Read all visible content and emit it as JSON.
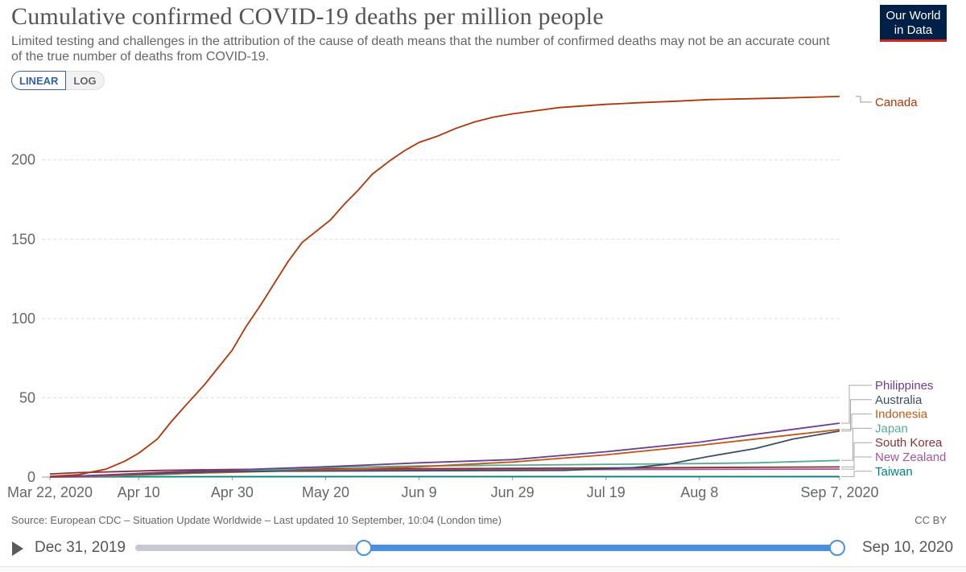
{
  "header": {
    "title": "Cumulative confirmed COVID-19 deaths per million people",
    "subtitle": "Limited testing and challenges in the attribution of the cause of death means that the number of confirmed deaths may not be an accurate count of the true number of deaths from COVID-19.",
    "logo_line1": "Our World",
    "logo_line2": "in Data"
  },
  "controls": {
    "linear_label": "LINEAR",
    "log_label": "LOG"
  },
  "footer": {
    "source": "Source: European CDC – Situation Update Worldwide – Last updated 10 September, 10:04 (London time)",
    "license": "CC BY"
  },
  "timeline": {
    "start_label": "Dec 31, 2019",
    "end_label": "Sep 10, 2020",
    "range_start_fraction": 0.326,
    "range_end_fraction": 1.0
  },
  "chart_data": {
    "type": "line",
    "title": "Cumulative confirmed COVID-19 deaths per million people",
    "xlabel": "",
    "ylabel": "",
    "x_range": [
      "2020-03-22",
      "2020-09-07"
    ],
    "ylim": [
      0,
      245
    ],
    "y_ticks": [
      0,
      50,
      100,
      150,
      200
    ],
    "x_ticks": [
      "Mar 22, 2020",
      "Apr 10",
      "Apr 30",
      "May 20",
      "Jun 9",
      "Jun 29",
      "Jul 19",
      "Aug 8",
      "Sep 7, 2020"
    ],
    "x_tick_dates": [
      "2020-03-22",
      "2020-04-10",
      "2020-04-30",
      "2020-05-20",
      "2020-06-09",
      "2020-06-29",
      "2020-07-19",
      "2020-08-08",
      "2020-09-07"
    ],
    "grid": "horizontal-dashed",
    "legend": "right",
    "series": [
      {
        "name": "Canada",
        "color": "#b13507",
        "x": [
          "2020-03-22",
          "2020-03-28",
          "2020-04-03",
          "2020-04-07",
          "2020-04-10",
          "2020-04-14",
          "2020-04-17",
          "2020-04-20",
          "2020-04-24",
          "2020-04-27",
          "2020-04-30",
          "2020-05-03",
          "2020-05-06",
          "2020-05-09",
          "2020-05-12",
          "2020-05-15",
          "2020-05-18",
          "2020-05-21",
          "2020-05-24",
          "2020-05-27",
          "2020-05-30",
          "2020-06-03",
          "2020-06-06",
          "2020-06-09",
          "2020-06-13",
          "2020-06-17",
          "2020-06-21",
          "2020-06-25",
          "2020-06-29",
          "2020-07-04",
          "2020-07-09",
          "2020-07-14",
          "2020-07-19",
          "2020-07-26",
          "2020-08-03",
          "2020-08-10",
          "2020-08-18",
          "2020-08-26",
          "2020-09-07"
        ],
        "y": [
          0.4,
          1.4,
          5,
          10,
          15,
          24,
          35,
          45,
          58,
          69,
          80,
          95,
          108,
          122,
          136,
          148,
          155,
          162,
          172,
          181,
          191,
          200,
          206,
          211,
          215,
          220,
          224,
          227,
          229,
          231,
          233,
          234,
          235,
          236,
          237,
          238,
          238.5,
          239,
          240
        ]
      },
      {
        "name": "Philippines",
        "color": "#6d3e91",
        "x": [
          "2020-03-22",
          "2020-03-28",
          "2020-04-05",
          "2020-04-15",
          "2020-04-30",
          "2020-05-20",
          "2020-06-09",
          "2020-06-29",
          "2020-07-19",
          "2020-08-08",
          "2020-08-20",
          "2020-09-07"
        ],
        "y": [
          0.2,
          0.6,
          1.6,
          3,
          4.5,
          6.5,
          9,
          11,
          16,
          22,
          27,
          34
        ]
      },
      {
        "name": "Australia",
        "color": "#3c4e66",
        "x": [
          "2020-03-22",
          "2020-03-28",
          "2020-04-05",
          "2020-04-15",
          "2020-04-30",
          "2020-07-10",
          "2020-07-25",
          "2020-08-01",
          "2020-08-10",
          "2020-08-20",
          "2020-08-28",
          "2020-09-07"
        ],
        "y": [
          0.3,
          0.6,
          1.5,
          2.5,
          3.6,
          4.2,
          6,
          8,
          13,
          18,
          24,
          29
        ]
      },
      {
        "name": "Indonesia",
        "color": "#c05917",
        "x": [
          "2020-03-22",
          "2020-03-28",
          "2020-04-05",
          "2020-04-15",
          "2020-04-30",
          "2020-05-20",
          "2020-06-09",
          "2020-06-29",
          "2020-07-19",
          "2020-08-08",
          "2020-08-20",
          "2020-09-07"
        ],
        "y": [
          0.1,
          0.4,
          1,
          2,
          3,
          4.5,
          6.5,
          9.5,
          14,
          20,
          24,
          30
        ]
      },
      {
        "name": "Japan",
        "color": "#58ac8c",
        "x": [
          "2020-03-22",
          "2020-03-28",
          "2020-04-05",
          "2020-04-15",
          "2020-04-30",
          "2020-05-20",
          "2020-06-09",
          "2020-07-19",
          "2020-08-08",
          "2020-08-20",
          "2020-09-07"
        ],
        "y": [
          0.4,
          0.5,
          0.8,
          1.5,
          3.6,
          6,
          7,
          8,
          8.5,
          9,
          10.5
        ]
      },
      {
        "name": "South Korea",
        "color": "#883039",
        "x": [
          "2020-03-22",
          "2020-03-28",
          "2020-04-05",
          "2020-04-15",
          "2020-04-30",
          "2020-05-20",
          "2020-06-29",
          "2020-09-07"
        ],
        "y": [
          2,
          2.8,
          3.4,
          4.2,
          4.8,
          5.1,
          5.5,
          6.4
        ]
      },
      {
        "name": "New Zealand",
        "color": "#a2559c",
        "x": [
          "2020-03-22",
          "2020-03-29",
          "2020-04-05",
          "2020-04-15",
          "2020-04-25",
          "2020-05-05",
          "2020-05-25",
          "2020-09-07"
        ],
        "y": [
          0,
          0.2,
          0.6,
          2,
          3.3,
          4.3,
          4.5,
          5
        ]
      },
      {
        "name": "Taiwan",
        "color": "#00847e",
        "x": [
          "2020-03-22",
          "2020-04-10",
          "2020-05-20",
          "2020-09-07"
        ],
        "y": [
          0.04,
          0.2,
          0.3,
          0.3
        ]
      }
    ],
    "legend_order": [
      "Philippines",
      "Australia",
      "Indonesia",
      "Japan",
      "South Korea",
      "New Zealand",
      "Taiwan"
    ]
  }
}
